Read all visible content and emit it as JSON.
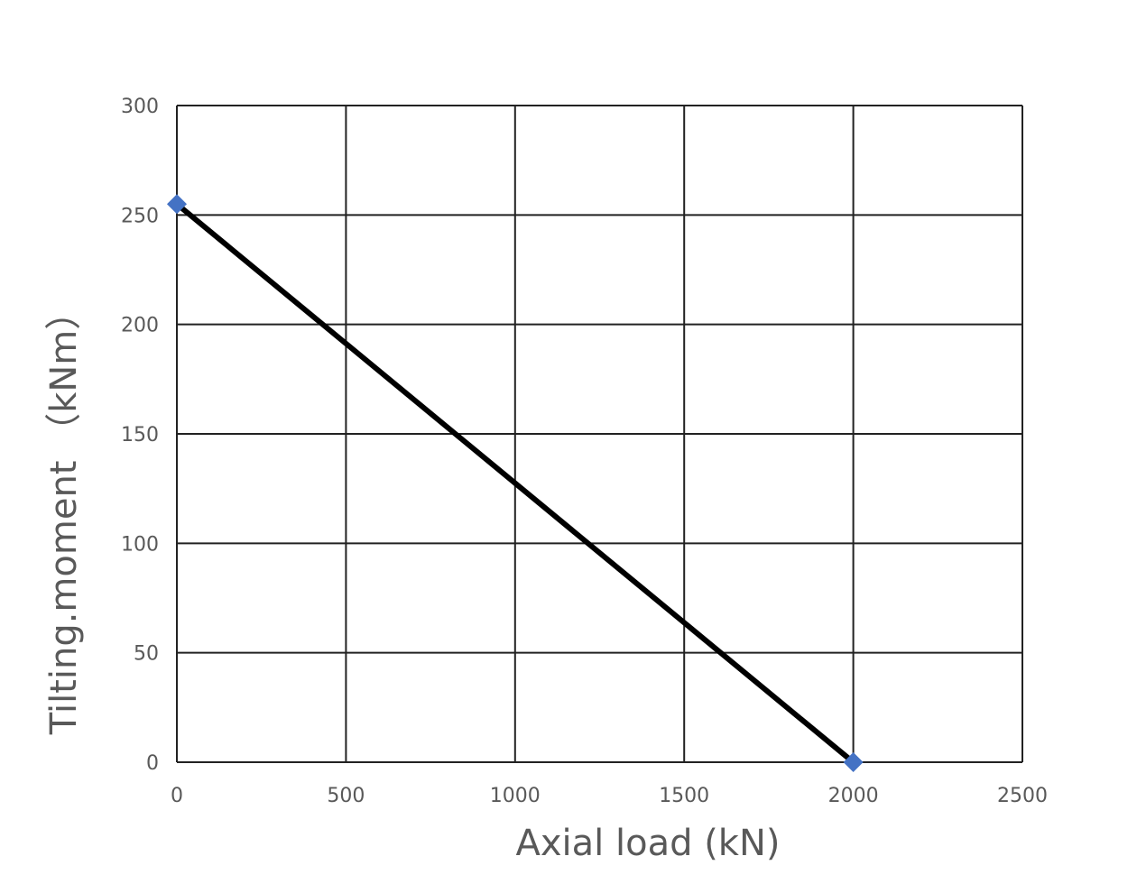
{
  "chart_data": {
    "type": "line",
    "title": "",
    "xlabel": "Axial load (kN)",
    "ylabel": "Tilting.moment （kNm）",
    "xlim": [
      0,
      2500
    ],
    "ylim": [
      0,
      300
    ],
    "x_ticks": [
      "0",
      "500",
      "1000",
      "1500",
      "2000",
      "2500"
    ],
    "y_ticks": [
      "0",
      "50",
      "100",
      "150",
      "200",
      "250",
      "300"
    ],
    "grid": true,
    "legend": "none",
    "series": [
      {
        "x": [
          0,
          2000
        ],
        "y": [
          255,
          0
        ],
        "line_color": "#000000",
        "marker": "diamond",
        "marker_color": "#4472C4"
      }
    ]
  }
}
